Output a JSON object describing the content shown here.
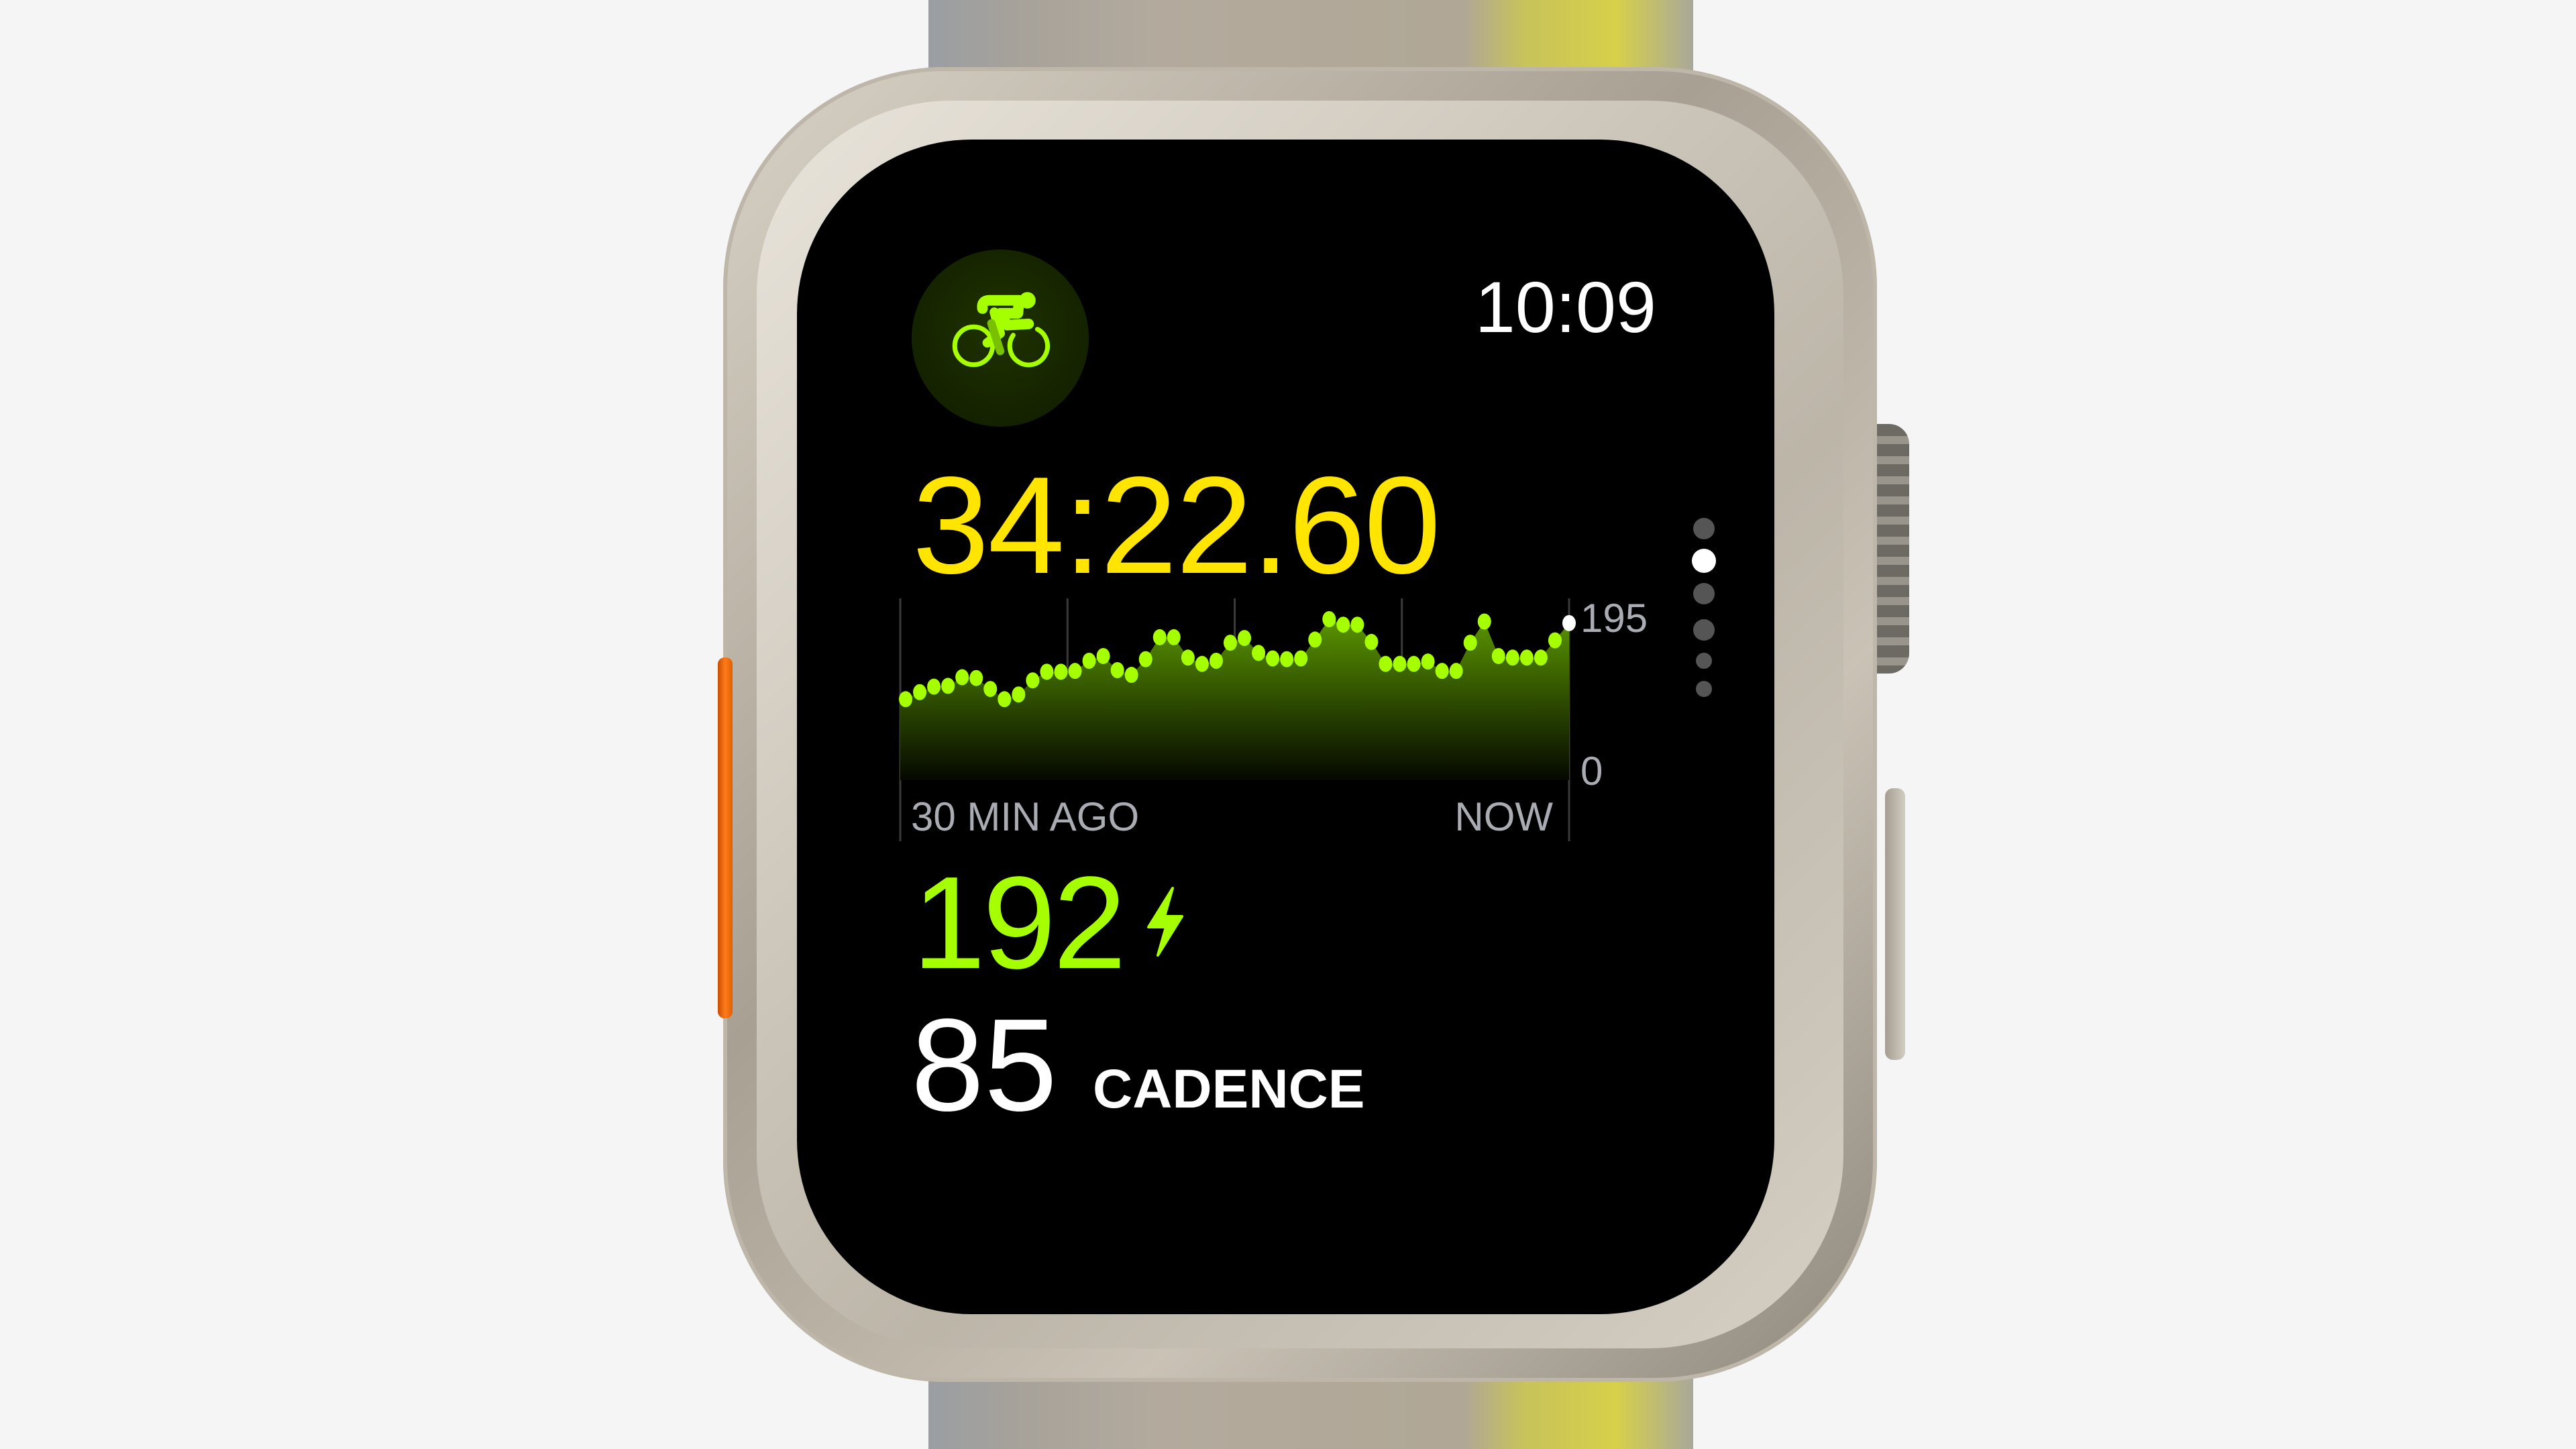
{
  "watch": {
    "time": "10:09",
    "workout_icon": "cycling-icon",
    "elapsed_time": "34:22.60",
    "power": {
      "value": "192",
      "icon": "bolt-icon"
    },
    "cadence": {
      "value": "85",
      "label": "CADENCE"
    },
    "page_indicator": {
      "count": 6,
      "active_index": 1
    },
    "colors": {
      "elapsed": "#ffe500",
      "power": "#a6ff00",
      "accent_bg": "#1a2e00",
      "text": "#ffffff",
      "axis_label": "#a9adb3",
      "action_button": "#ff7a1a"
    }
  },
  "chart_data": {
    "type": "area",
    "x_labels": [
      "30 MIN AGO",
      "NOW"
    ],
    "y_tick_labels": [
      "195",
      "0"
    ],
    "ylim": [
      0,
      195
    ],
    "grid": "vertical",
    "values": [
      87,
      96,
      103,
      104,
      115,
      114,
      100,
      87,
      93,
      111,
      122,
      122,
      123,
      136,
      142,
      124,
      118,
      138,
      166,
      166,
      140,
      132,
      136,
      159,
      165,
      146,
      139,
      138,
      139,
      163,
      189,
      182,
      182,
      160,
      132,
      132,
      132,
      135,
      123,
      123,
      159,
      186,
      142,
      140,
      140,
      140,
      162,
      184
    ],
    "highlight_last": "#ffffff",
    "point_color": "#a6ff00"
  }
}
